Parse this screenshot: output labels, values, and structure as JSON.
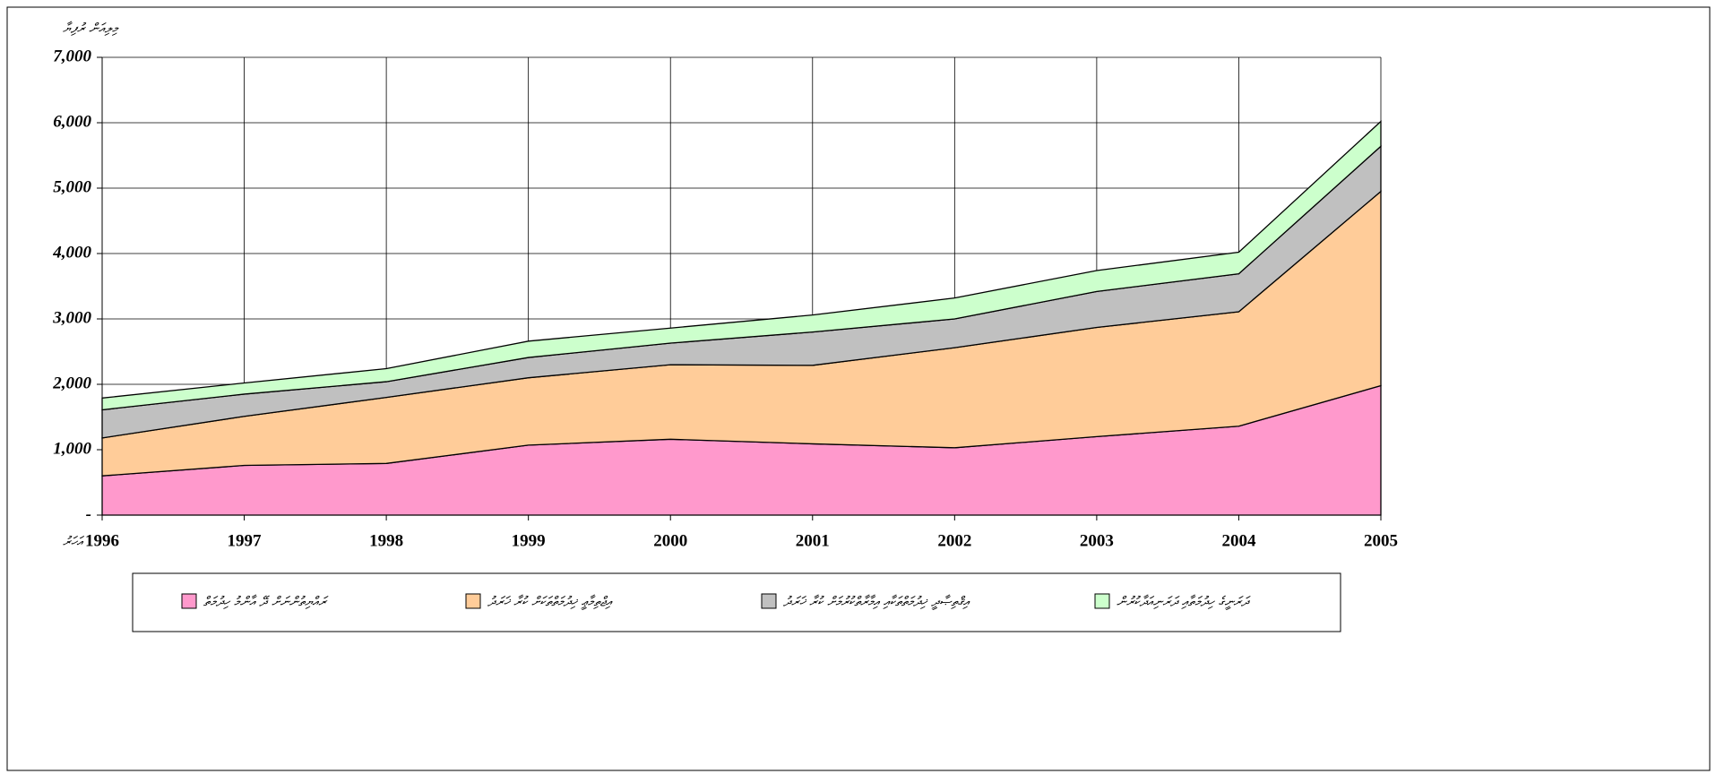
{
  "chart_data": {
    "type": "stacked_area",
    "y_label": "މިލިއަން ރުފިޔާ",
    "x_label": "އަހަރު",
    "x": [
      1996,
      1997,
      1998,
      1999,
      2000,
      2001,
      2002,
      2003,
      2004,
      2005
    ],
    "xlim": [
      1996,
      2005
    ],
    "xticks": [
      1996,
      1997,
      1998,
      1999,
      2000,
      2001,
      2002,
      2003,
      2004,
      2005
    ],
    "ylim": [
      0,
      7000
    ],
    "yticks": [
      {
        "value": 0,
        "label": "-"
      },
      {
        "value": 1000,
        "label": "1,000"
      },
      {
        "value": 2000,
        "label": "2,000"
      },
      {
        "value": 3000,
        "label": "3,000"
      },
      {
        "value": 4000,
        "label": "4,000"
      },
      {
        "value": 5000,
        "label": "5,000"
      },
      {
        "value": 6000,
        "label": "6,000"
      },
      {
        "value": 7000,
        "label": "7,000"
      }
    ],
    "grid": true,
    "series": [
      {
        "name": "ރައްޔިތުންނަށް ދޭ އާންމު ހިދުމަތް",
        "color": "#ff99cc",
        "values": [
          600,
          760,
          790,
          1070,
          1160,
          1090,
          1030,
          1200,
          1360,
          1980
        ]
      },
      {
        "name": "އިޖްތިމާޢީ ޚިދުމަތްތަކަށް ކުރާ ޚަރަދު",
        "color": "#ffcc99",
        "values": [
          580,
          750,
          1010,
          1030,
          1140,
          1200,
          1530,
          1670,
          1750,
          2970
        ]
      },
      {
        "name": "އިޤްތިޞާދީ ޚިދުމަތްތަކާއި އިމާރާތްކުރުމަށް ކުރާ ޚަރަދު",
        "color": "#c0c0c0",
        "values": [
          430,
          340,
          240,
          310,
          330,
          510,
          440,
          550,
          580,
          690
        ]
      },
      {
        "name": "ދަރަނީގެ ހިދުމަތާއި ދަރަނިއަދާކުރުން",
        "color": "#ccffcc",
        "values": [
          180,
          170,
          200,
          250,
          230,
          260,
          320,
          320,
          330,
          380
        ]
      }
    ]
  }
}
